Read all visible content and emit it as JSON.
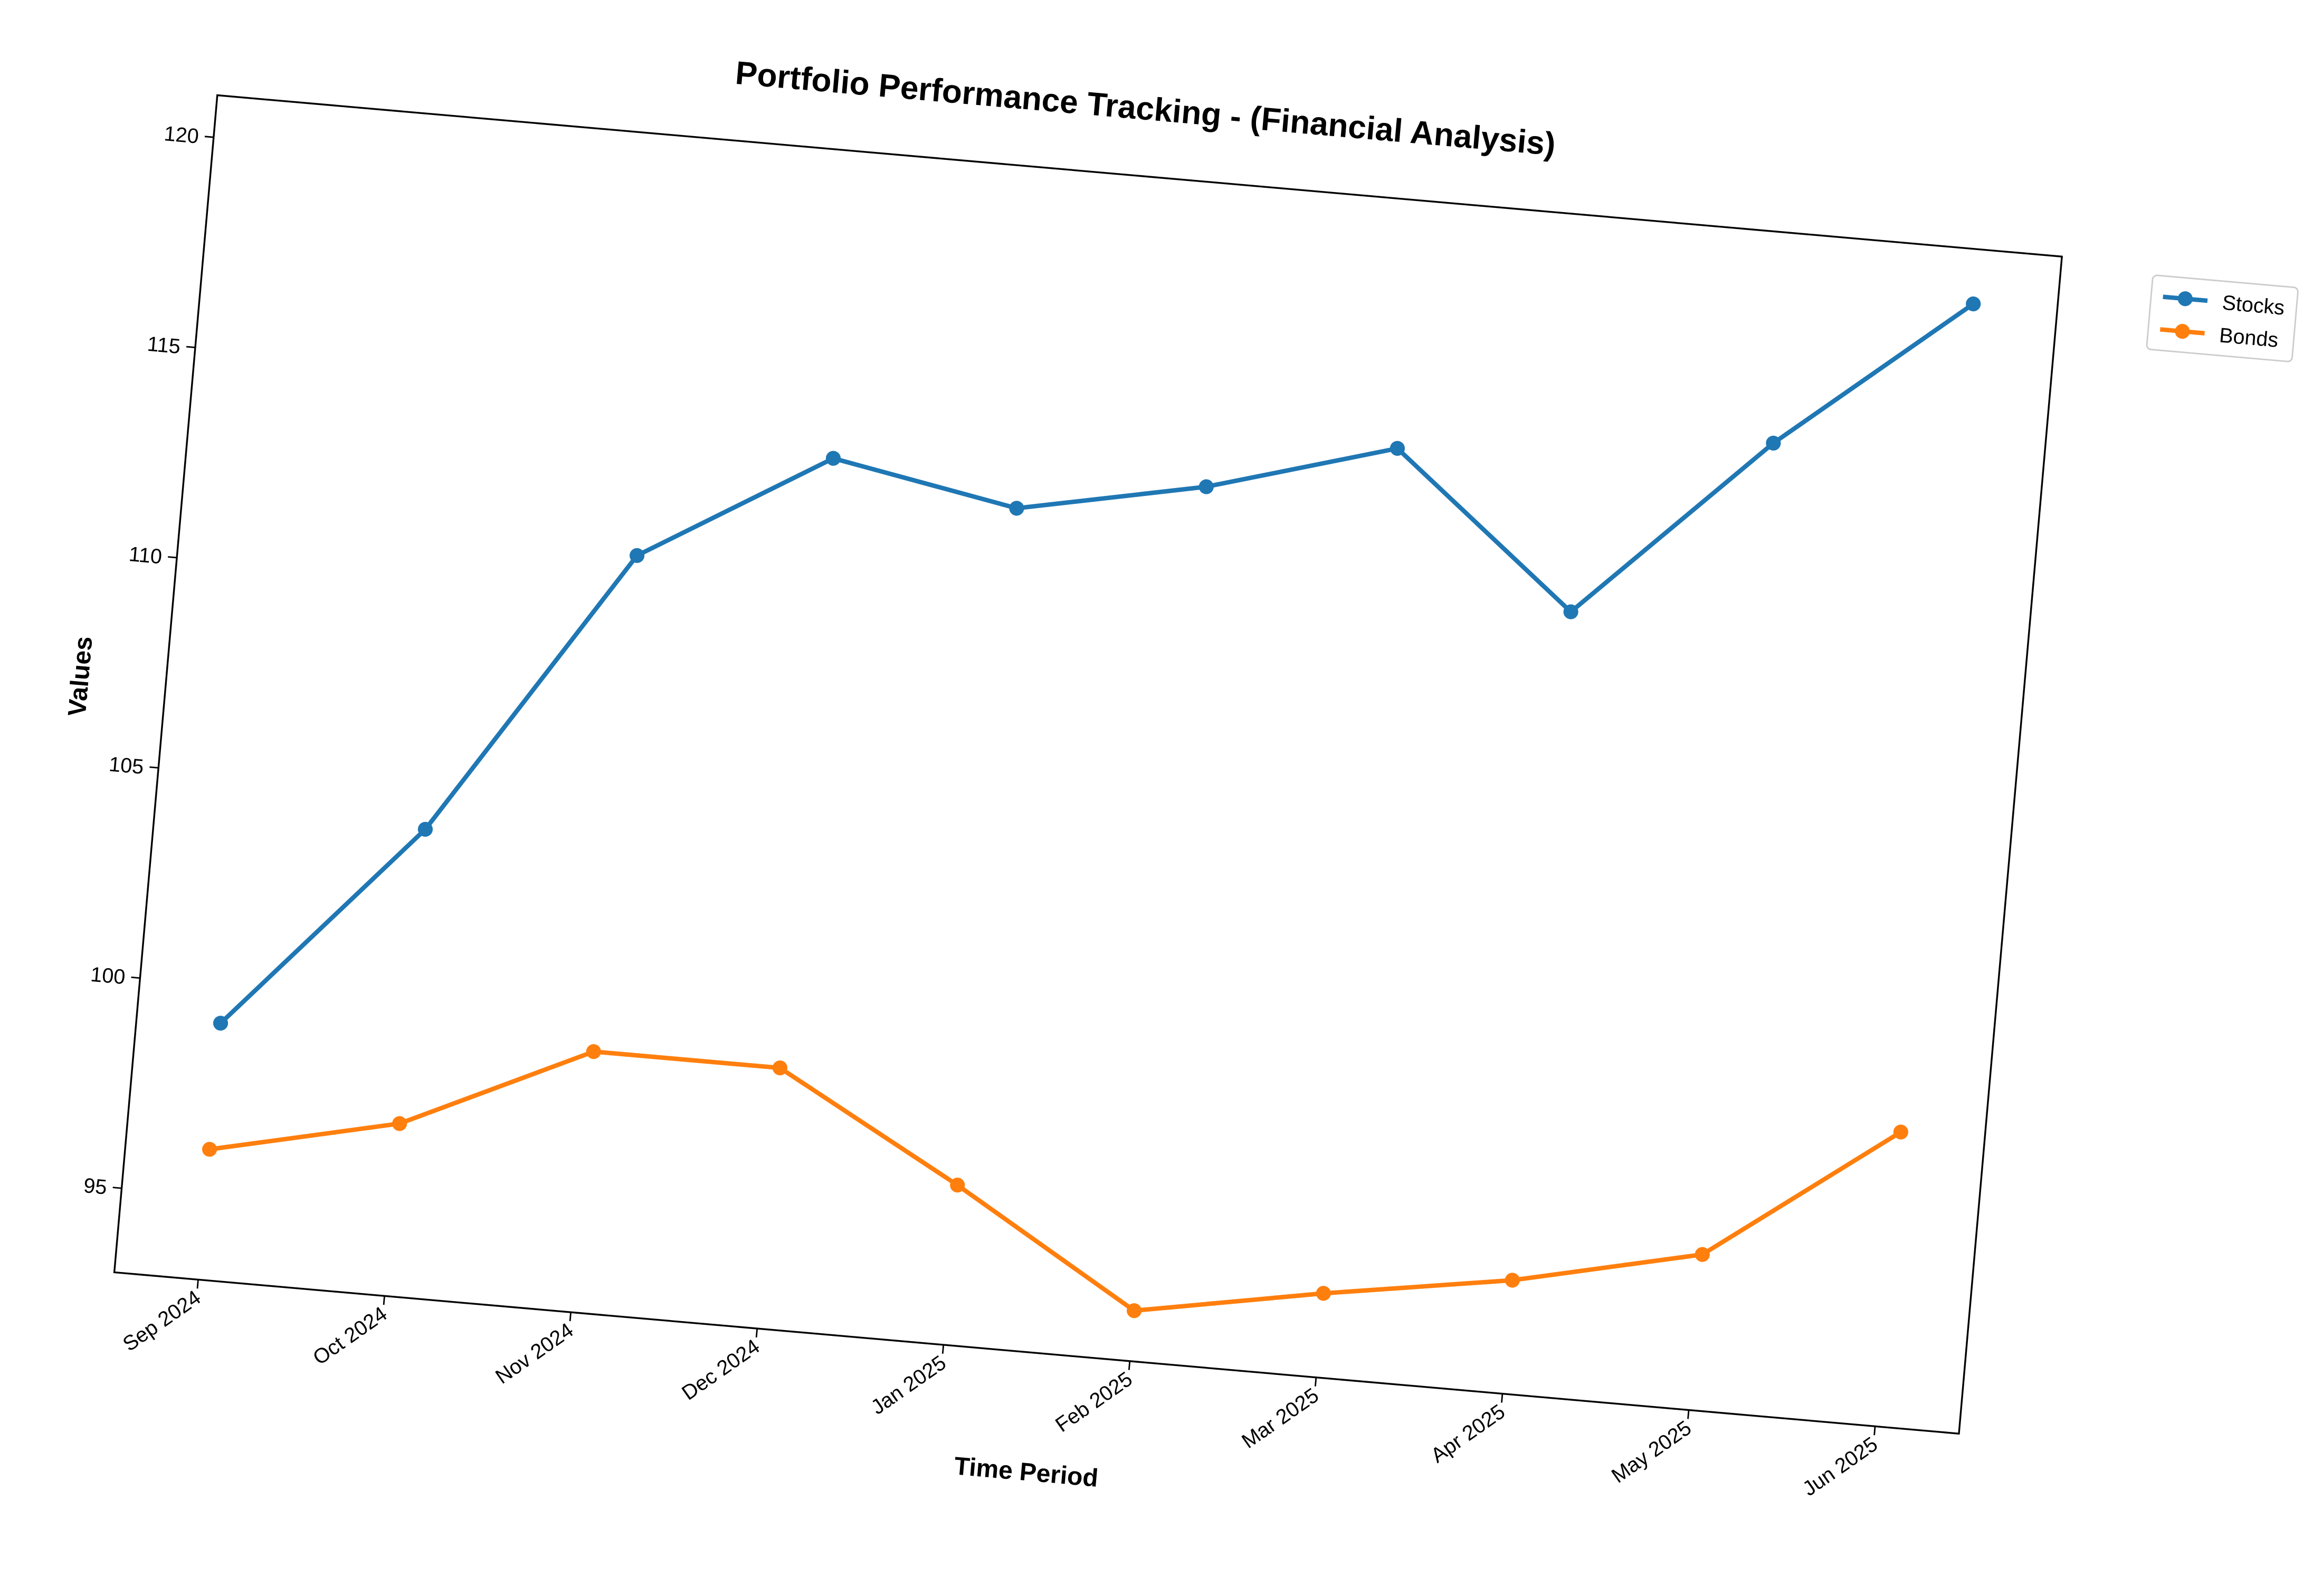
{
  "chart_data": {
    "type": "line",
    "title": "Portfolio Performance Tracking - (Financial Analysis)",
    "x_label": "Time Period",
    "y_label": "Values",
    "x": [
      "Sep 2024",
      "Oct 2024",
      "Nov 2024",
      "Dec 2024",
      "Jan 2025",
      "Feb 2025",
      "Mar 2025",
      "Apr 2025",
      "May 2025",
      "Jun 2025"
    ],
    "series": [
      {
        "name": "Stocks",
        "color": "#1f77b4",
        "values": [
          99.1,
          104.1,
          111.0,
          113.7,
          112.9,
          113.8,
          115.1,
          111.6,
          116.0,
          119.7
        ]
      },
      {
        "name": "Bonds",
        "color": "#ff7f0e",
        "values": [
          96.1,
          97.1,
          99.2,
          99.2,
          96.8,
          94.2,
          95.0,
          95.7,
          96.7,
          100.0
        ]
      }
    ],
    "ylim": [
      93,
      121
    ],
    "yticks": [
      95,
      100,
      105,
      110,
      115,
      120
    ],
    "grid": false,
    "legend": "upper right outside"
  }
}
